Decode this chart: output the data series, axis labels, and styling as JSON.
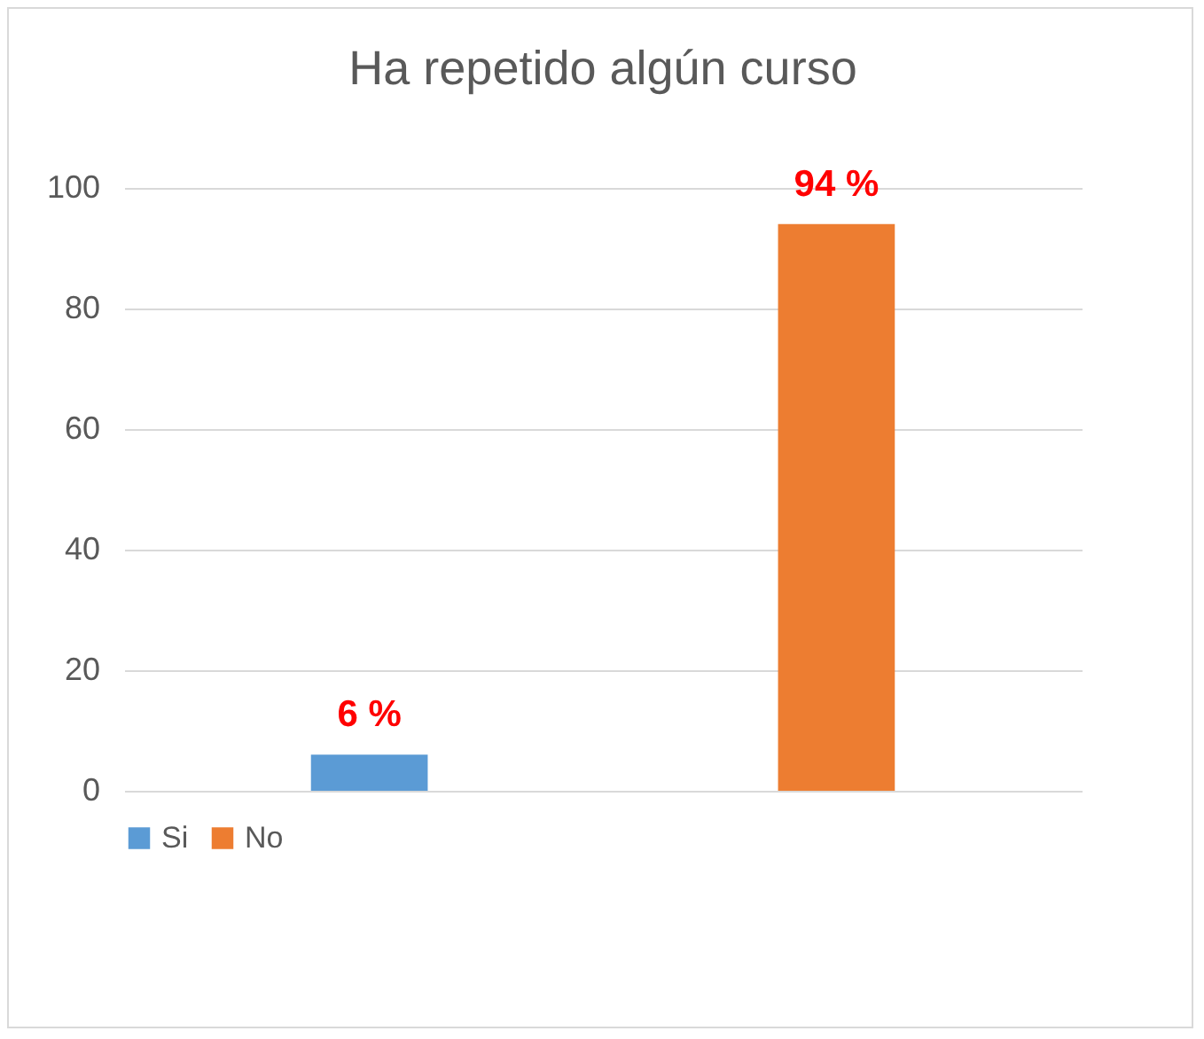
{
  "chart_data": {
    "type": "bar",
    "title": "Ha repetido algún curso",
    "categories": [
      null,
      null
    ],
    "series": [
      {
        "name": "Si",
        "color": "#5b9bd5",
        "values": [
          6,
          null
        ],
        "value_labels": [
          "6 %",
          null
        ]
      },
      {
        "name": "No",
        "color": "#ed7d31",
        "values": [
          null,
          94
        ],
        "value_labels": [
          null,
          "94 %"
        ]
      }
    ],
    "ylim": [
      0,
      100
    ],
    "yticks": [
      0,
      20,
      40,
      60,
      80,
      100
    ],
    "grid": "y",
    "legend": "bottom"
  }
}
